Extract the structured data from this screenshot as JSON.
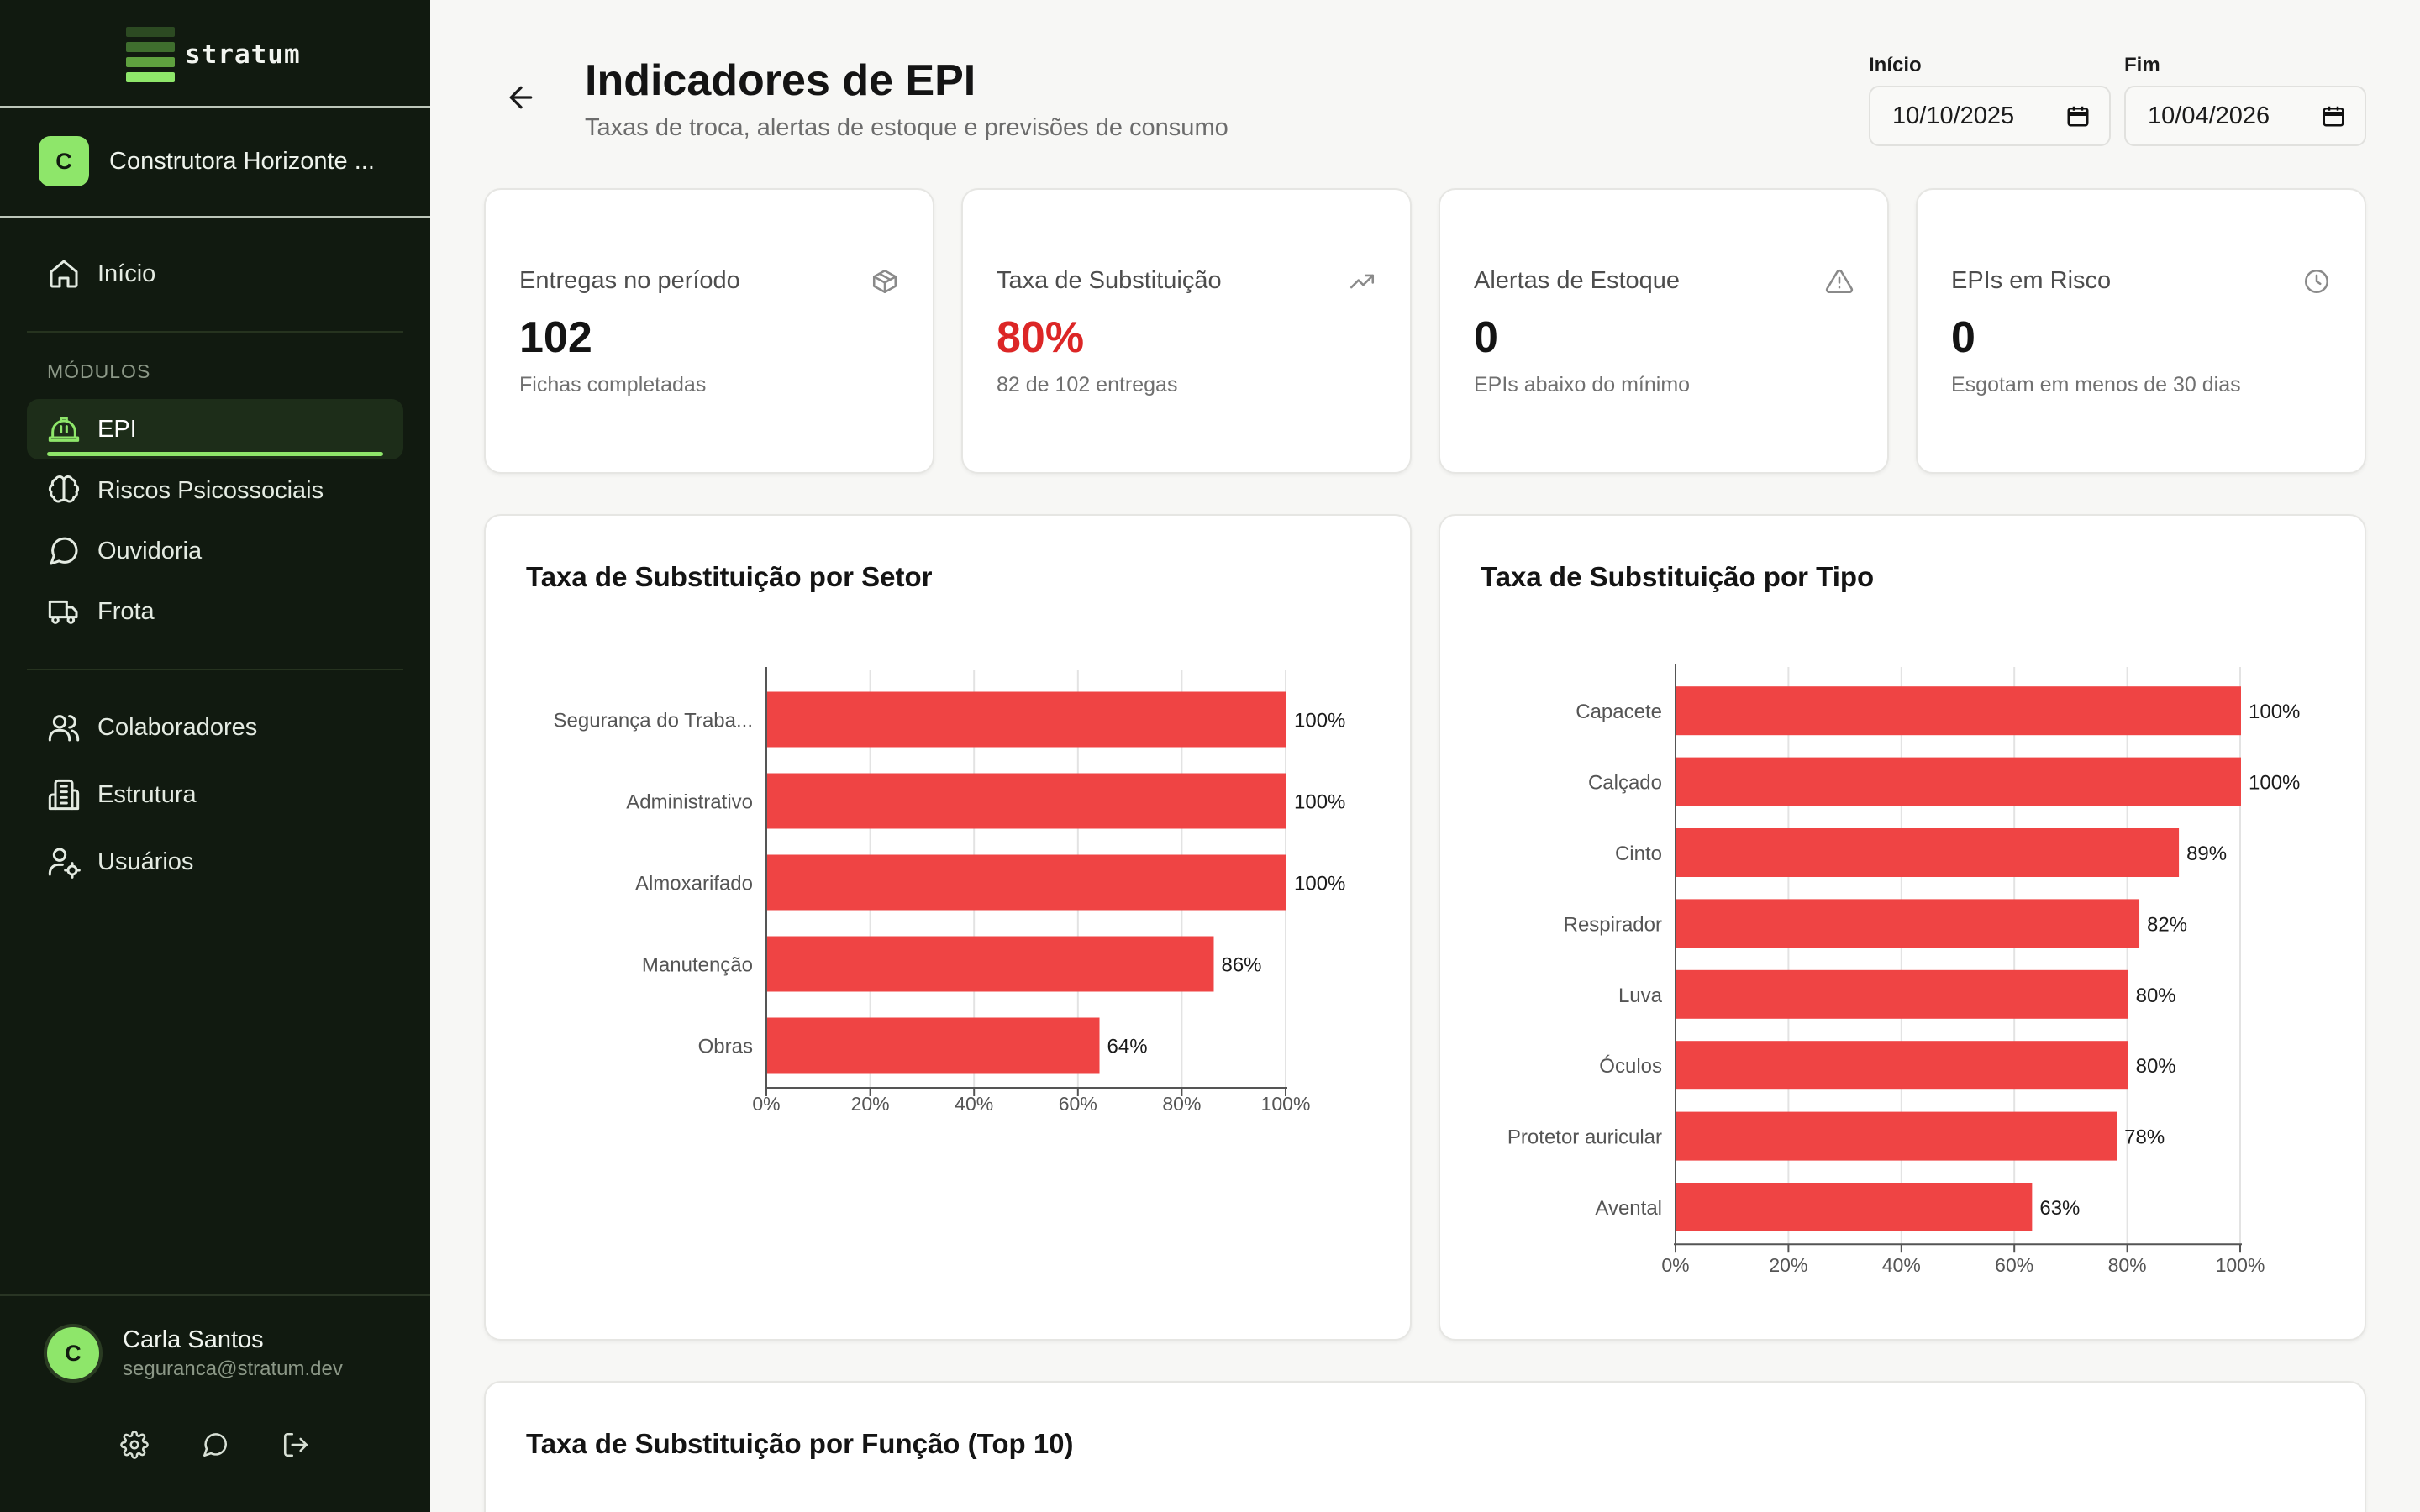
{
  "sidebar": {
    "brand": "stratum",
    "org": {
      "initial": "C",
      "name": "Construtora Horizonte ..."
    },
    "top_items": [
      {
        "label": "Início",
        "icon": "home-icon"
      }
    ],
    "section_label": "MÓDULOS",
    "modules": [
      {
        "label": "EPI",
        "icon": "hard-hat-icon",
        "active": true
      },
      {
        "label": "Riscos Psicossociais",
        "icon": "brain-icon"
      },
      {
        "label": "Ouvidoria",
        "icon": "message-circle-icon"
      },
      {
        "label": "Frota",
        "icon": "truck-icon"
      }
    ],
    "admin": [
      {
        "label": "Colaboradores",
        "icon": "users-icon"
      },
      {
        "label": "Estrutura",
        "icon": "building-icon"
      },
      {
        "label": "Usuários",
        "icon": "user-cog-icon"
      }
    ],
    "user": {
      "initial": "C",
      "name": "Carla Santos",
      "email": "seguranca@stratum.dev"
    },
    "footer_icons": [
      "settings-icon",
      "chat-icon",
      "logout-icon"
    ]
  },
  "header": {
    "title": "Indicadores de EPI",
    "subtitle": "Taxas de troca, alertas de estoque e previsões de consumo",
    "start": {
      "label": "Início",
      "value": "10/10/2025"
    },
    "end": {
      "label": "Fim",
      "value": "10/04/2026"
    }
  },
  "kpis": [
    {
      "label": "Entregas no período",
      "value": "102",
      "sub": "Fichas completadas",
      "icon": "package-icon"
    },
    {
      "label": "Taxa de Substituição",
      "value": "80%",
      "sub": "82 de 102 entregas",
      "icon": "trending-up-icon",
      "highlight": true
    },
    {
      "label": "Alertas de Estoque",
      "value": "0",
      "sub": "EPIs abaixo do mínimo",
      "icon": "alert-triangle-icon"
    },
    {
      "label": "EPIs em Risco",
      "value": "0",
      "sub": "Esgotam em menos de 30 dias",
      "icon": "clock-icon"
    }
  ],
  "colors": {
    "bar": "#ef4444",
    "accent": "#8ee66a",
    "sidebar_bg": "#111a10",
    "kpi_red": "#dc2626"
  },
  "chart_data": [
    {
      "type": "bar",
      "orientation": "horizontal",
      "title": "Taxa de Substituição por Setor",
      "categories": [
        "Segurança do Traba...",
        "Administrativo",
        "Almoxarifado",
        "Manutenção",
        "Obras"
      ],
      "values": [
        100,
        100,
        100,
        86,
        64
      ],
      "value_labels": [
        "100%",
        "100%",
        "100%",
        "86%",
        "64%"
      ],
      "xlim": [
        0,
        100
      ],
      "xticks": [
        "0%",
        "20%",
        "40%",
        "60%",
        "80%",
        "100%"
      ],
      "grid": true
    },
    {
      "type": "bar",
      "orientation": "horizontal",
      "title": "Taxa de Substituição por Tipo",
      "categories": [
        "Capacete",
        "Calçado",
        "Cinto",
        "Respirador",
        "Luva",
        "Óculos",
        "Protetor auricular",
        "Avental"
      ],
      "values": [
        100,
        100,
        89,
        82,
        80,
        80,
        78,
        63
      ],
      "value_labels": [
        "100%",
        "100%",
        "89%",
        "82%",
        "80%",
        "80%",
        "78%",
        "63%"
      ],
      "xlim": [
        0,
        100
      ],
      "xticks": [
        "0%",
        "20%",
        "40%",
        "60%",
        "80%",
        "100%"
      ],
      "grid": true
    }
  ],
  "bottom_section": {
    "title": "Taxa de Substituição por Função (Top 10)"
  }
}
